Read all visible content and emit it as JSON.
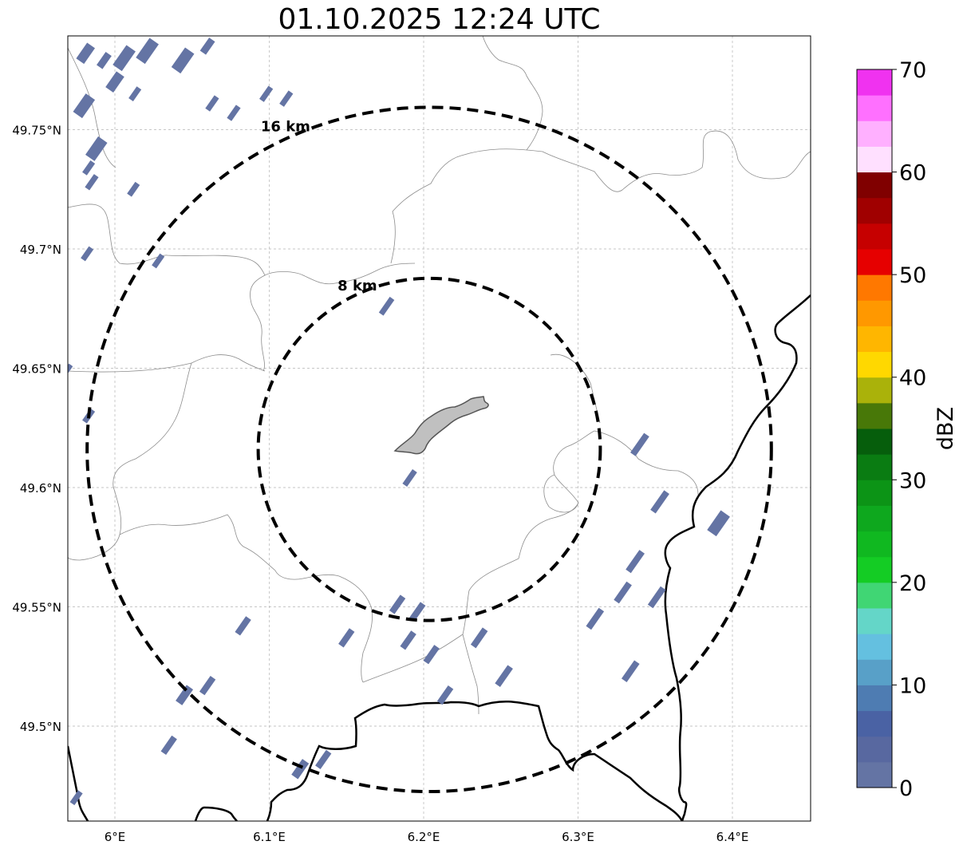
{
  "title": "01.10.2025 12:24 UTC",
  "axes": {
    "lon_ticks": [
      {
        "value": 6.0,
        "label": "6°E"
      },
      {
        "value": 6.1,
        "label": "6.1°E"
      },
      {
        "value": 6.2,
        "label": "6.2°E"
      },
      {
        "value": 6.3,
        "label": "6.3°E"
      },
      {
        "value": 6.4,
        "label": "6.4°E"
      }
    ],
    "lat_ticks": [
      {
        "value": 49.75,
        "label": "49.75°N"
      },
      {
        "value": 49.7,
        "label": "49.7°N"
      },
      {
        "value": 49.65,
        "label": "49.65°N"
      },
      {
        "value": 49.6,
        "label": "49.6°N"
      },
      {
        "value": 49.55,
        "label": "49.55°N"
      },
      {
        "value": 49.5,
        "label": "49.5°N"
      }
    ],
    "lon_range": [
      5.97,
      6.45
    ],
    "lat_range": [
      49.46,
      49.79
    ],
    "grid": true
  },
  "range_rings": [
    {
      "label": "16 km",
      "radius_km": 16
    },
    {
      "label": "8 km",
      "radius_km": 8
    }
  ],
  "radar_center": {
    "lon": 6.2,
    "lat": 49.623
  },
  "colorbar": {
    "label": "dBZ",
    "min": 0,
    "max": 70,
    "ticks": [
      {
        "value": 0,
        "label": "0"
      },
      {
        "value": 10,
        "label": "10"
      },
      {
        "value": 20,
        "label": "20"
      },
      {
        "value": 30,
        "label": "30"
      },
      {
        "value": 40,
        "label": "40"
      },
      {
        "value": 50,
        "label": "50"
      },
      {
        "value": 60,
        "label": "60"
      },
      {
        "value": 70,
        "label": "70"
      }
    ],
    "colors": [
      "#6474a4",
      "#5868a0",
      "#4a62a4",
      "#4e7cb2",
      "#58a0c8",
      "#64c0e0",
      "#64d6c8",
      "#40d674",
      "#14cc24",
      "#10b820",
      "#0ea81e",
      "#0c9416",
      "#0a7c12",
      "#065e0c",
      "#487808",
      "#aab20a",
      "#ffd800",
      "#ffb600",
      "#ff9800",
      "#ff7800",
      "#e60000",
      "#c60000",
      "#a00000",
      "#800000",
      "#ffe0ff",
      "#ffb0ff",
      "#ff70ff",
      "#f032f0"
    ]
  },
  "echo_color": "#6474a4",
  "area_fill_color": "#c0c0c0"
}
